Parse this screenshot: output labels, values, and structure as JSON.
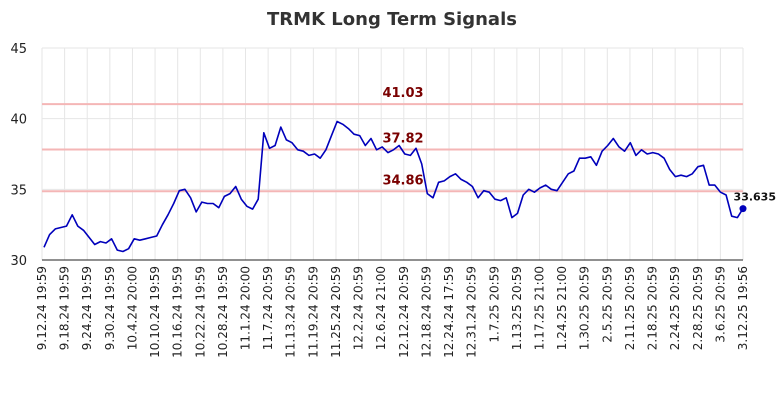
{
  "chart_data": {
    "type": "line",
    "title": "TRMK Long Term Signals",
    "xlabel": "",
    "ylabel": "",
    "ylim": [
      30,
      45
    ],
    "yticks": [
      30,
      35,
      40,
      45
    ],
    "grid": true,
    "x_ticks": [
      "9.12.24 19:59",
      "9.18.24 19:59",
      "9.24.24 19:59",
      "9.30.24 19:59",
      "10.4.24 20:00",
      "10.10.24 19:59",
      "10.16.24 19:59",
      "10.22.24 19:59",
      "10.28.24 19:59",
      "11.1.24 20:00",
      "11.7.24 20:59",
      "11.13.24 20:59",
      "11.19.24 20:59",
      "11.25.24 20:59",
      "12.2.24 20:59",
      "12.6.24 21:00",
      "12.12.24 20:59",
      "12.18.24 20:59",
      "12.24.24 17:59",
      "12.31.24 20:59",
      "1.7.25 20:59",
      "1.13.25 20:59",
      "1.17.25 21:00",
      "1.24.25 21:00",
      "1.30.25 20:59",
      "2.5.25 20:59",
      "2.11.25 20:59",
      "2.18.25 20:59",
      "2.24.25 20:59",
      "2.28.25 20:59",
      "3.6.25 20:59",
      "3.12.25 19:56"
    ],
    "series": [
      {
        "values": [
          30.9,
          31.8,
          32.2,
          32.3,
          32.4,
          33.2,
          32.4,
          32.1,
          31.6,
          31.1,
          31.3,
          31.2,
          31.5,
          30.7,
          30.6,
          30.8,
          31.5,
          31.4,
          31.5,
          31.6,
          31.7,
          32.5,
          33.2,
          34.0,
          34.9,
          35.0,
          34.4,
          33.4,
          34.1,
          34.0,
          34.0,
          33.7,
          34.5,
          34.7,
          35.2,
          34.3,
          33.8,
          33.6,
          34.3,
          39.0,
          37.9,
          38.1,
          39.4,
          38.5,
          38.3,
          37.8,
          37.7,
          37.4,
          37.5,
          37.2,
          37.8,
          38.8,
          39.8,
          39.6,
          39.3,
          38.9,
          38.8,
          38.1,
          38.6,
          37.8,
          38.0,
          37.6,
          37.8,
          38.1,
          37.5,
          37.4,
          37.9,
          36.8,
          34.7,
          34.4,
          35.5,
          35.6,
          35.9,
          36.1,
          35.7,
          35.5,
          35.2,
          34.4,
          34.9,
          34.8,
          34.3,
          34.2,
          34.4,
          33.0,
          33.3,
          34.6,
          35.0,
          34.8,
          35.1,
          35.3,
          35.0,
          34.9,
          35.5,
          36.1,
          36.3,
          37.2,
          37.2,
          37.3,
          36.7,
          37.7,
          38.1,
          38.6,
          38.0,
          37.7,
          38.3,
          37.4,
          37.8,
          37.5,
          37.6,
          37.5,
          37.2,
          36.4,
          35.9,
          36.0,
          35.9,
          36.1,
          36.6,
          36.7,
          35.3,
          35.3,
          34.8,
          34.6,
          33.1,
          33.0,
          33.635
        ]
      }
    ],
    "levels": [
      {
        "value": 41.03,
        "label": "41.03"
      },
      {
        "value": 37.82,
        "label": "37.82"
      },
      {
        "value": 34.86,
        "label": "34.86"
      }
    ],
    "last_value": {
      "value": 33.635,
      "label": "33.635"
    },
    "colors": {
      "line": "#0000bb",
      "level_line": "#f4b6b6",
      "level_label": "#7a0000",
      "grid": "#e6e6e6",
      "axis": "#222222",
      "marker": "#0000bb"
    }
  }
}
